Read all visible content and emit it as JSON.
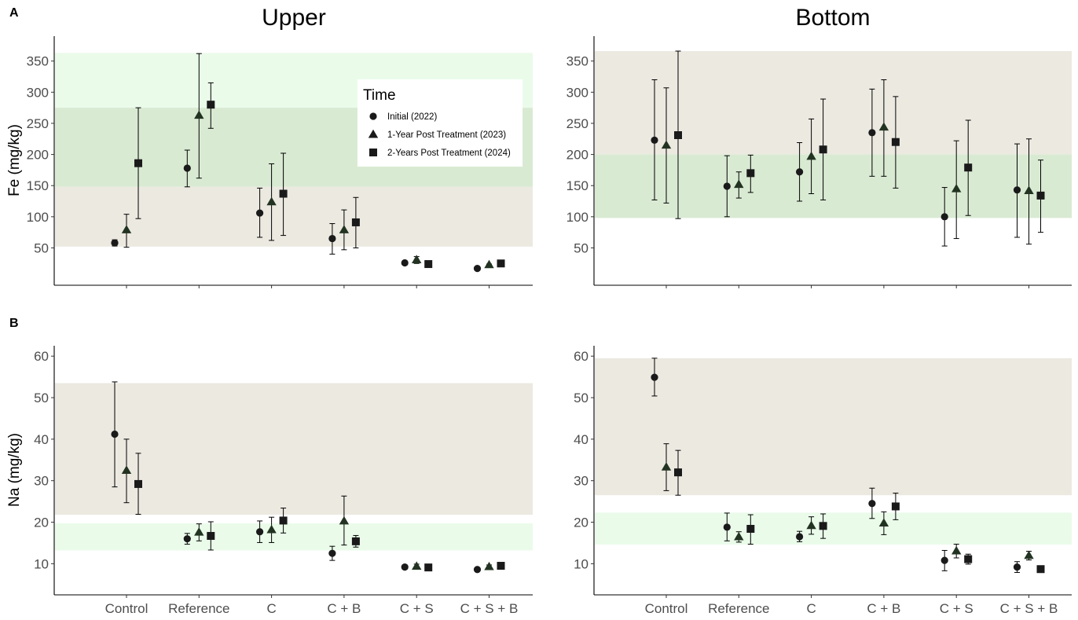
{
  "panel_labels": [
    "A",
    "B"
  ],
  "column_titles": [
    "Upper",
    "Bottom"
  ],
  "legend": {
    "title": "Time",
    "items": [
      "Initial (2022)",
      "1-Year Post Treatment (2023)",
      "2-Years Post Treatment (2024)"
    ],
    "shapes": [
      "circle",
      "triangle",
      "square"
    ]
  },
  "colors": {
    "band_green": "#d9ead3",
    "band_light_green": "#eafbea",
    "band_beige": "#ece9e1",
    "marker_dark": "#1a1a1a",
    "marker_green": "#223322"
  },
  "chart_data": [
    {
      "id": "fe-upper",
      "type": "scatter",
      "title": "Upper",
      "panel": "A",
      "ylabel": "Fe (mg/kg)",
      "ylim": [
        -10,
        390
      ],
      "yticks": [
        50,
        100,
        150,
        200,
        250,
        300,
        350
      ],
      "categories": [
        "Control",
        "Reference",
        "C",
        "C + B",
        "C + S",
        "C + S + B"
      ],
      "show_xticklabels": false,
      "bands": [
        {
          "from": 275,
          "to": 363,
          "color": "#eafbea"
        },
        {
          "from": 148,
          "to": 275,
          "color": "#d9ead3"
        },
        {
          "from": 52,
          "to": 148,
          "color": "#ece9e1"
        }
      ],
      "legend_position": "top-right",
      "series": [
        {
          "name": "Initial (2022)",
          "shape": "circle",
          "values": [
            58,
            178,
            106,
            65,
            26,
            17
          ],
          "lower": [
            53,
            148,
            67,
            40,
            23,
            15
          ],
          "upper": [
            63,
            207,
            146,
            89,
            28,
            18
          ]
        },
        {
          "name": "1-Year Post Treatment (2023)",
          "shape": "triangle",
          "values": [
            79,
            263,
            124,
            79,
            31,
            23
          ],
          "lower": [
            51,
            162,
            62,
            47,
            25,
            22
          ],
          "upper": [
            104,
            362,
            185,
            111,
            36,
            24
          ]
        },
        {
          "name": "2-Years Post Treatment (2024)",
          "shape": "square",
          "values": [
            186,
            280,
            137,
            91,
            24,
            25
          ],
          "lower": [
            97,
            242,
            70,
            50,
            22,
            21
          ],
          "upper": [
            275,
            315,
            202,
            131,
            26,
            30
          ]
        }
      ]
    },
    {
      "id": "fe-bottom",
      "type": "scatter",
      "title": "Bottom",
      "panel": "A",
      "ylabel": "",
      "ylim": [
        -10,
        390
      ],
      "yticks": [
        50,
        100,
        150,
        200,
        250,
        300,
        350
      ],
      "categories": [
        "Control",
        "Reference",
        "C",
        "C + B",
        "C + S",
        "C + S + B"
      ],
      "show_xticklabels": false,
      "bands": [
        {
          "from": 200,
          "to": 366,
          "color": "#ece9e1"
        },
        {
          "from": 98,
          "to": 200,
          "color": "#d9ead3"
        }
      ],
      "series": [
        {
          "name": "Initial (2022)",
          "shape": "circle",
          "values": [
            223,
            149,
            172,
            235,
            100,
            143
          ],
          "lower": [
            127,
            100,
            125,
            165,
            53,
            67
          ],
          "upper": [
            320,
            198,
            219,
            305,
            147,
            217
          ]
        },
        {
          "name": "1-Year Post Treatment (2023)",
          "shape": "triangle",
          "values": [
            215,
            152,
            197,
            244,
            145,
            142
          ],
          "lower": [
            122,
            130,
            137,
            165,
            65,
            56
          ],
          "upper": [
            307,
            172,
            257,
            320,
            222,
            225
          ]
        },
        {
          "name": "2-Years Post Treatment (2024)",
          "shape": "square",
          "values": [
            231,
            170,
            208,
            220,
            179,
            134
          ],
          "lower": [
            97,
            139,
            127,
            146,
            102,
            75
          ],
          "upper": [
            366,
            199,
            289,
            293,
            255,
            191
          ]
        }
      ]
    },
    {
      "id": "na-upper",
      "type": "scatter",
      "title": "",
      "panel": "B",
      "ylabel": "Na (mg/kg)",
      "ylim": [
        2.5,
        62.5
      ],
      "yticks": [
        10,
        20,
        30,
        40,
        50,
        60
      ],
      "categories": [
        "Control",
        "Reference",
        "C",
        "C + B",
        "C + S",
        "C + S + B"
      ],
      "show_xticklabels": true,
      "bands": [
        {
          "from": 21.8,
          "to": 53.5,
          "color": "#ece9e1"
        },
        {
          "from": 13.2,
          "to": 19.7,
          "color": "#eafbea"
        }
      ],
      "series": [
        {
          "name": "Initial (2022)",
          "shape": "circle",
          "values": [
            41.2,
            16.0,
            17.7,
            12.5,
            9.2,
            8.6
          ],
          "lower": [
            28.5,
            14.7,
            15.1,
            10.8,
            8.7,
            8.2
          ],
          "upper": [
            53.8,
            17.3,
            20.3,
            14.2,
            9.7,
            9.0
          ]
        },
        {
          "name": "1-Year Post Treatment (2023)",
          "shape": "triangle",
          "values": [
            32.5,
            17.6,
            18.2,
            20.3,
            9.4,
            9.3
          ],
          "lower": [
            24.7,
            15.5,
            15.1,
            14.5,
            8.9,
            8.9
          ],
          "upper": [
            40.0,
            19.6,
            21.2,
            26.3,
            9.9,
            9.7
          ]
        },
        {
          "name": "2-Years Post Treatment (2024)",
          "shape": "square",
          "values": [
            29.2,
            16.7,
            20.4,
            15.4,
            9.1,
            9.5
          ],
          "lower": [
            21.9,
            13.3,
            17.4,
            14.0,
            8.6,
            8.8
          ],
          "upper": [
            36.6,
            20.1,
            23.4,
            16.8,
            9.6,
            10.2
          ]
        }
      ]
    },
    {
      "id": "na-bottom",
      "type": "scatter",
      "title": "",
      "panel": "B",
      "ylabel": "",
      "ylim": [
        2.5,
        62.5
      ],
      "yticks": [
        10,
        20,
        30,
        40,
        50,
        60
      ],
      "categories": [
        "Control",
        "Reference",
        "C",
        "C + B",
        "C + S",
        "C + S + B"
      ],
      "show_xticklabels": true,
      "bands": [
        {
          "from": 26.5,
          "to": 59.5,
          "color": "#ece9e1"
        },
        {
          "from": 14.6,
          "to": 22.3,
          "color": "#eafbea"
        }
      ],
      "series": [
        {
          "name": "Initial (2022)",
          "shape": "circle",
          "values": [
            54.9,
            18.8,
            16.5,
            24.5,
            10.8,
            9.2
          ],
          "lower": [
            50.4,
            15.5,
            15.3,
            20.9,
            8.3,
            7.9
          ],
          "upper": [
            59.5,
            22.2,
            17.8,
            28.2,
            13.2,
            10.5
          ]
        },
        {
          "name": "1-Year Post Treatment (2023)",
          "shape": "triangle",
          "values": [
            33.3,
            16.5,
            19.2,
            19.8,
            13.1,
            12.0
          ],
          "lower": [
            27.6,
            15.2,
            17.1,
            17.0,
            11.4,
            10.9
          ],
          "upper": [
            38.9,
            17.7,
            21.3,
            22.5,
            14.7,
            13.0
          ]
        },
        {
          "name": "2-Years Post Treatment (2024)",
          "shape": "square",
          "values": [
            32.0,
            18.4,
            19.1,
            23.8,
            11.1,
            8.7
          ],
          "lower": [
            26.5,
            14.7,
            16.1,
            20.6,
            9.9,
            8.4
          ],
          "upper": [
            37.3,
            21.8,
            22.0,
            27.0,
            12.3,
            9.0
          ]
        }
      ]
    }
  ]
}
